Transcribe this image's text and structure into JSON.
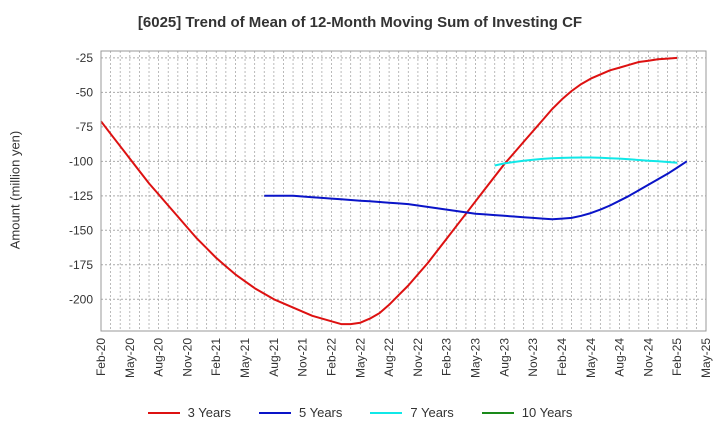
{
  "chart_data": {
    "type": "line",
    "title": "[6025]  Trend of Mean of 12-Month Moving Sum of Investing CF",
    "ylabel": "Amount (million yen)",
    "xlabel": "",
    "x_ticks": [
      "Feb-20",
      "May-20",
      "Aug-20",
      "Nov-20",
      "Feb-21",
      "May-21",
      "Aug-21",
      "Nov-21",
      "Feb-22",
      "May-22",
      "Aug-22",
      "Nov-22",
      "Feb-23",
      "May-23",
      "Aug-23",
      "Nov-23",
      "Feb-24",
      "May-24",
      "Aug-24",
      "Nov-24",
      "Feb-25",
      "May-25"
    ],
    "y_ticks": [
      -25,
      -50,
      -75,
      -100,
      -125,
      -150,
      -175,
      -200
    ],
    "ylim": [
      -223,
      -20
    ],
    "grid": true,
    "legend_position": "bottom",
    "series": [
      {
        "name": "3 Years",
        "color": "#dd1111",
        "points": [
          [
            "Feb-20",
            -71
          ],
          [
            "Mar-20",
            -80
          ],
          [
            "Apr-20",
            -89
          ],
          [
            "May-20",
            -98
          ],
          [
            "Jun-20",
            -107
          ],
          [
            "Jul-20",
            -116
          ],
          [
            "Aug-20",
            -124
          ],
          [
            "Sep-20",
            -132
          ],
          [
            "Oct-20",
            -140
          ],
          [
            "Nov-20",
            -148
          ],
          [
            "Dec-20",
            -156
          ],
          [
            "Jan-21",
            -163
          ],
          [
            "Feb-21",
            -170
          ],
          [
            "Mar-21",
            -176
          ],
          [
            "Apr-21",
            -182
          ],
          [
            "May-21",
            -187
          ],
          [
            "Jun-21",
            -192
          ],
          [
            "Jul-21",
            -196
          ],
          [
            "Aug-21",
            -200
          ],
          [
            "Sep-21",
            -203
          ],
          [
            "Oct-21",
            -206
          ],
          [
            "Nov-21",
            -209
          ],
          [
            "Dec-21",
            -212
          ],
          [
            "Jan-22",
            -214
          ],
          [
            "Feb-22",
            -216
          ],
          [
            "Mar-22",
            -218
          ],
          [
            "Apr-22",
            -218
          ],
          [
            "May-22",
            -217
          ],
          [
            "Jun-22",
            -214
          ],
          [
            "Jul-22",
            -210
          ],
          [
            "Aug-22",
            -204
          ],
          [
            "Sep-22",
            -197
          ],
          [
            "Oct-22",
            -190
          ],
          [
            "Nov-22",
            -182
          ],
          [
            "Dec-22",
            -174
          ],
          [
            "Jan-23",
            -165
          ],
          [
            "Feb-23",
            -156
          ],
          [
            "Mar-23",
            -147
          ],
          [
            "Apr-23",
            -138
          ],
          [
            "May-23",
            -129
          ],
          [
            "Jun-23",
            -120
          ],
          [
            "Jul-23",
            -111
          ],
          [
            "Aug-23",
            -102
          ],
          [
            "Sep-23",
            -94
          ],
          [
            "Oct-23",
            -86
          ],
          [
            "Nov-23",
            -78
          ],
          [
            "Dec-23",
            -70
          ],
          [
            "Jan-24",
            -62
          ],
          [
            "Feb-24",
            -55
          ],
          [
            "Mar-24",
            -49
          ],
          [
            "Apr-24",
            -44
          ],
          [
            "May-24",
            -40
          ],
          [
            "Jun-24",
            -37
          ],
          [
            "Jul-24",
            -34
          ],
          [
            "Aug-24",
            -32
          ],
          [
            "Sep-24",
            -30
          ],
          [
            "Oct-24",
            -28
          ],
          [
            "Nov-24",
            -27
          ],
          [
            "Dec-24",
            -26
          ],
          [
            "Jan-25",
            -25.5
          ],
          [
            "Feb-25",
            -25
          ]
        ]
      },
      {
        "name": "5 Years",
        "color": "#0a14c8",
        "points": [
          [
            "Jul-21",
            -125
          ],
          [
            "Aug-21",
            -125
          ],
          [
            "Sep-21",
            -125
          ],
          [
            "Oct-21",
            -125
          ],
          [
            "Nov-21",
            -125.5
          ],
          [
            "Dec-21",
            -126
          ],
          [
            "Jan-22",
            -126.5
          ],
          [
            "Feb-22",
            -127
          ],
          [
            "Mar-22",
            -127.5
          ],
          [
            "Apr-22",
            -128
          ],
          [
            "May-22",
            -128.5
          ],
          [
            "Jun-22",
            -129
          ],
          [
            "Jul-22",
            -129.5
          ],
          [
            "Aug-22",
            -130
          ],
          [
            "Sep-22",
            -130.5
          ],
          [
            "Oct-22",
            -131
          ],
          [
            "Nov-22",
            -132
          ],
          [
            "Dec-22",
            -133
          ],
          [
            "Jan-23",
            -134
          ],
          [
            "Feb-23",
            -135
          ],
          [
            "Mar-23",
            -136
          ],
          [
            "Apr-23",
            -137
          ],
          [
            "May-23",
            -138
          ],
          [
            "Jun-23",
            -138.5
          ],
          [
            "Jul-23",
            -139
          ],
          [
            "Aug-23",
            -139.5
          ],
          [
            "Sep-23",
            -140
          ],
          [
            "Oct-23",
            -140.5
          ],
          [
            "Nov-23",
            -141
          ],
          [
            "Dec-23",
            -141.5
          ],
          [
            "Jan-24",
            -142
          ],
          [
            "Feb-24",
            -141.5
          ],
          [
            "Mar-24",
            -141
          ],
          [
            "Apr-24",
            -139.5
          ],
          [
            "May-24",
            -137.5
          ],
          [
            "Jun-24",
            -135
          ],
          [
            "Jul-24",
            -132
          ],
          [
            "Aug-24",
            -128.5
          ],
          [
            "Sep-24",
            -125
          ],
          [
            "Oct-24",
            -121
          ],
          [
            "Nov-24",
            -117
          ],
          [
            "Dec-24",
            -113
          ],
          [
            "Jan-25",
            -109
          ],
          [
            "Feb-25",
            -104.5
          ],
          [
            "Mar-25",
            -100
          ]
        ]
      },
      {
        "name": "7 Years",
        "color": "#10e8e8",
        "points": [
          [
            "Jul-23",
            -103
          ],
          [
            "Aug-23",
            -101.5
          ],
          [
            "Sep-23",
            -100.5
          ],
          [
            "Oct-23",
            -99.5
          ],
          [
            "Nov-23",
            -98.8
          ],
          [
            "Dec-23",
            -98.2
          ],
          [
            "Jan-24",
            -97.8
          ],
          [
            "Feb-24",
            -97.5
          ],
          [
            "Mar-24",
            -97.3
          ],
          [
            "Apr-24",
            -97.2
          ],
          [
            "May-24",
            -97.2
          ],
          [
            "Jun-24",
            -97.4
          ],
          [
            "Jul-24",
            -97.7
          ],
          [
            "Aug-24",
            -98
          ],
          [
            "Sep-24",
            -98.5
          ],
          [
            "Oct-24",
            -99
          ],
          [
            "Nov-24",
            -99.5
          ],
          [
            "Dec-24",
            -100
          ],
          [
            "Jan-25",
            -100.5
          ],
          [
            "Feb-25",
            -101
          ]
        ]
      },
      {
        "name": "10 Years",
        "color": "#1a8a1a",
        "points": []
      }
    ]
  }
}
